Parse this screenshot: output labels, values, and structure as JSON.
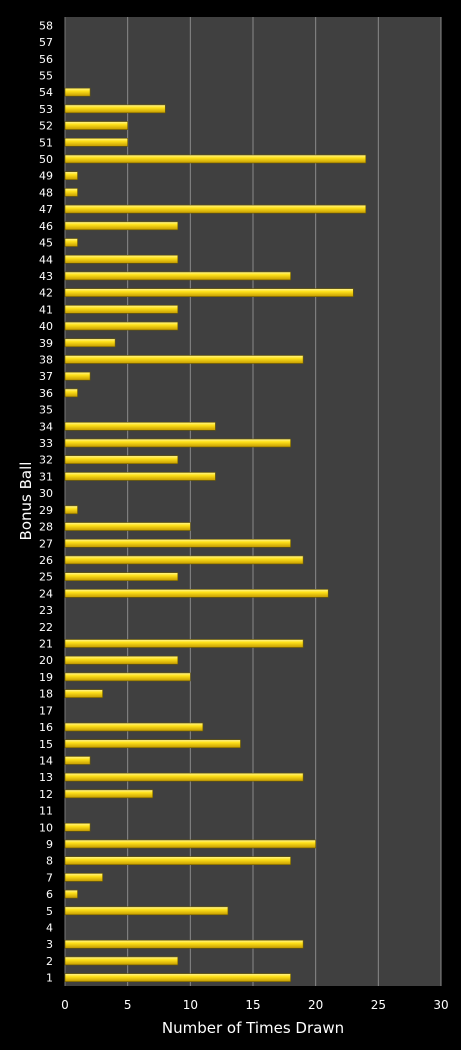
{
  "chart_data": {
    "type": "bar",
    "orientation": "horizontal",
    "title": "",
    "xlabel": "Number of Times Drawn",
    "ylabel": "Bonus Ball",
    "xlim": [
      0,
      30
    ],
    "xticks": [
      0,
      5,
      10,
      15,
      20,
      25,
      30
    ],
    "grid": true,
    "legend": "none",
    "categories": [
      "1",
      "2",
      "3",
      "4",
      "5",
      "6",
      "7",
      "8",
      "9",
      "10",
      "11",
      "12",
      "13",
      "14",
      "15",
      "16",
      "17",
      "18",
      "19",
      "20",
      "21",
      "22",
      "23",
      "24",
      "25",
      "26",
      "27",
      "28",
      "29",
      "30",
      "31",
      "32",
      "33",
      "34",
      "35",
      "36",
      "37",
      "38",
      "39",
      "40",
      "41",
      "42",
      "43",
      "44",
      "45",
      "46",
      "47",
      "48",
      "49",
      "50",
      "51",
      "52",
      "53",
      "54",
      "55",
      "56",
      "57",
      "58"
    ],
    "values": [
      18,
      9,
      19,
      0,
      13,
      1,
      3,
      18,
      20,
      2,
      0,
      7,
      19,
      2,
      14,
      11,
      0,
      3,
      10,
      9,
      19,
      0,
      0,
      21,
      9,
      19,
      18,
      10,
      1,
      0,
      12,
      9,
      18,
      12,
      0,
      1,
      2,
      19,
      4,
      9,
      9,
      23,
      18,
      9,
      1,
      9,
      24,
      1,
      1,
      24,
      5,
      5,
      8,
      2,
      0,
      0,
      0,
      0
    ],
    "colors": {
      "background": "#000000",
      "plot": "#404040",
      "grid": "#8a8a8a",
      "bar": "#ffd700",
      "bar_edge": "#6b5a00",
      "text": "#ffffff"
    }
  }
}
